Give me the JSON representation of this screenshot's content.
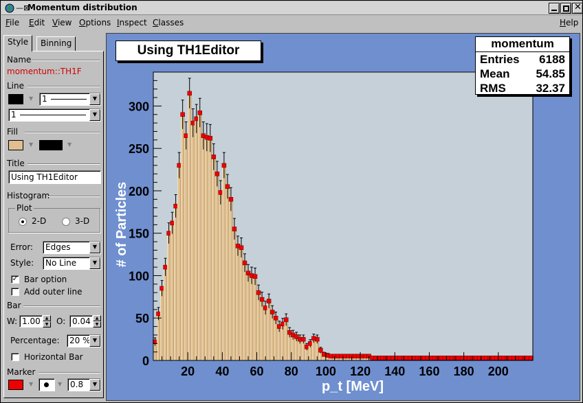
{
  "window": {
    "title": "Momentum distribution"
  },
  "menu": [
    "File",
    "Edit",
    "View",
    "Options",
    "Inspect",
    "Classes"
  ],
  "help_label": "Help",
  "editor": {
    "tabs": [
      "Style",
      "Binning"
    ],
    "name_label": "Name",
    "object_name": "momentum::TH1F",
    "line_label": "Line",
    "line_width_value": "1",
    "line_style_value": "1",
    "fill_label": "Fill",
    "fill_color": "#e0c090",
    "title_label": "Title",
    "title_value": "Using TH1Editor",
    "histogram_label": "Histogram",
    "plot_label": "Plot",
    "plot_2d": "2-D",
    "plot_3d": "3-D",
    "error_label": "Error:",
    "error_value": "Edges",
    "style_label": "Style:",
    "style_value": "No Line",
    "bar_option": "Bar option",
    "add_outer_line": "Add outer line",
    "bar_label": "Bar",
    "w_label": "W:",
    "w_value": "1.00",
    "o_label": "O:",
    "o_value": "0.04",
    "percentage_label": "Percentage:",
    "percentage_value": "20 %",
    "horizontal_bar": "Horizontal Bar",
    "marker_label": "Marker",
    "marker_color": "#ee0000",
    "marker_size": "0.8"
  },
  "canvas": {
    "plot_title": "Using TH1Editor",
    "stats": {
      "name": "momentum",
      "rows": [
        {
          "key": "Entries",
          "value": "6188"
        },
        {
          "key": "Mean",
          "value": "54.85"
        },
        {
          "key": "RMS",
          "value": "32.37"
        }
      ]
    }
  },
  "chart_data": {
    "type": "bar",
    "title": "Using TH1Editor",
    "xlabel": "p_t [MeV]",
    "ylabel": "# of Particles",
    "xlim": [
      0,
      220
    ],
    "ylim": [
      0,
      340
    ],
    "xticks": [
      20,
      40,
      60,
      80,
      100,
      120,
      140,
      160,
      180,
      200
    ],
    "yticks": [
      0,
      50,
      100,
      150,
      200,
      250,
      300
    ],
    "bin_width": 2,
    "bar_fill": "#e0c090",
    "frame_fill": "#c6d0d8",
    "marker_color": "#ee0000",
    "error_bars": true,
    "values": [
      22,
      55,
      85,
      110,
      150,
      162,
      182,
      230,
      290,
      265,
      315,
      280,
      285,
      292,
      265,
      263,
      262,
      240,
      220,
      198,
      230,
      205,
      190,
      155,
      135,
      133,
      115,
      103,
      100,
      99,
      80,
      72,
      62,
      70,
      57,
      50,
      40,
      43,
      48,
      33,
      30,
      28,
      25,
      25,
      16,
      20,
      26,
      25,
      12,
      7,
      6,
      5,
      5,
      5,
      5,
      5,
      5,
      5,
      5,
      5,
      5,
      5,
      5,
      3,
      3,
      3,
      3,
      3,
      3,
      3,
      3,
      3,
      3,
      3,
      3,
      3,
      3,
      3,
      3,
      3,
      3,
      3,
      3,
      3,
      3,
      3,
      3,
      3,
      3,
      3,
      3,
      3,
      3,
      3,
      3,
      3,
      3,
      3,
      3,
      3,
      3,
      3,
      3,
      3,
      3,
      3,
      3,
      3,
      3,
      3
    ]
  }
}
